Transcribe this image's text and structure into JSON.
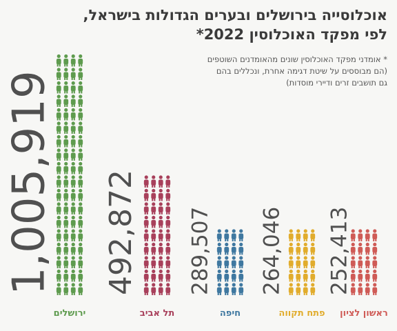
{
  "title": {
    "line1": "אוכלוסייה בירושלים ובערים הגדולות בישראל,",
    "line2": "לפי מפקד האוכלוסין 2022*"
  },
  "footnote": {
    "line1": "* אומדני מפקד האוכלוסין שונים מהאומדנים השוטפים",
    "line2": "(הם מבוססים על שיטת דגימה אחרת, ונכללים בהם",
    "line3": "גם תושבים זרים ודיירי מוסדות)"
  },
  "chart_data": {
    "type": "bar",
    "title": "אוכלוסייה בירושלים ובערים הגדולות בישראל, לפי מפקד האוכלוסין 2022*",
    "categories": [
      "ירושלים",
      "תל אביב",
      "חיפה",
      "פתח תקווה",
      "ראשון לציון"
    ],
    "values": [
      1005919,
      492872,
      289507,
      264046,
      252413
    ],
    "value_labels": [
      "1,005,919",
      "492,872",
      "289,507",
      "264,046",
      "252,413"
    ],
    "colors": [
      "#5e9b4e",
      "#a8405b",
      "#3f78a0",
      "#e1ac2c",
      "#cf5b56"
    ],
    "icon": "person-icon"
  }
}
